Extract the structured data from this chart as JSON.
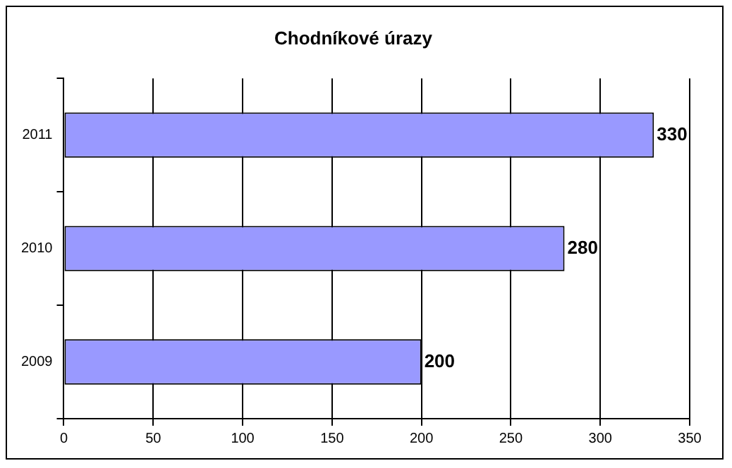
{
  "chart_data": {
    "type": "bar",
    "orientation": "horizontal",
    "title": "Chodníkové úrazy",
    "categories": [
      "2011",
      "2010",
      "2009"
    ],
    "values": [
      330,
      280,
      200
    ],
    "color": "#9999ff",
    "xlim": [
      0,
      350
    ],
    "xticks": [
      0,
      50,
      100,
      150,
      200,
      250,
      300,
      350
    ],
    "grid": "x",
    "data_labels": true,
    "legend": false
  }
}
